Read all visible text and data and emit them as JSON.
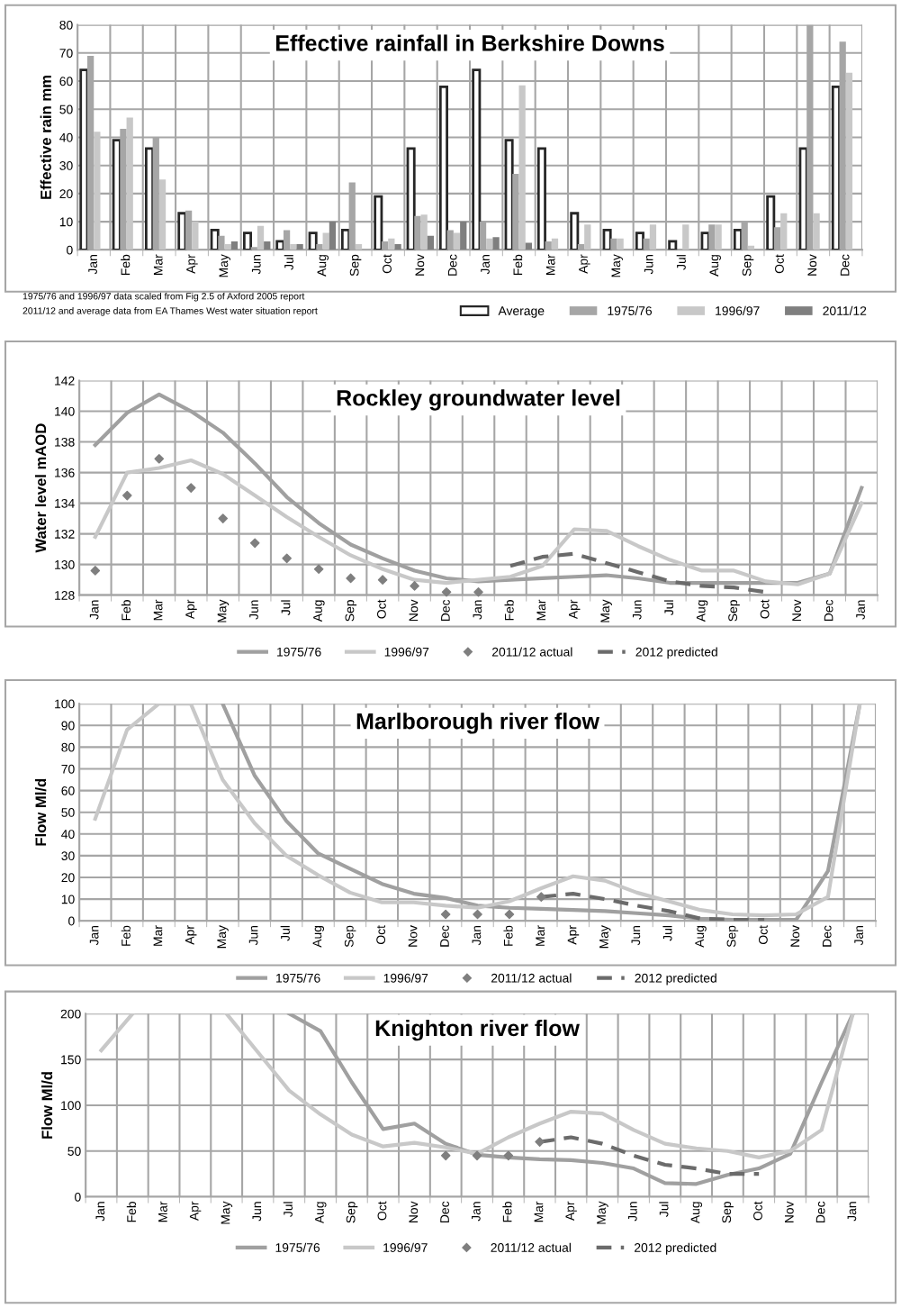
{
  "chart_data": [
    {
      "type": "bar",
      "title": "Effective rainfall in Berkshire Downs",
      "ylabel": "Effective rain mm",
      "categories": [
        "Jan",
        "Feb",
        "Mar",
        "Apr",
        "May",
        "Jun",
        "Jul",
        "Aug",
        "Sep",
        "Oct",
        "Nov",
        "Dec",
        "Jan",
        "Feb",
        "Mar",
        "Apr",
        "May",
        "Jun",
        "Jul",
        "Aug",
        "Sep",
        "Oct",
        "Nov",
        "Dec"
      ],
      "series": [
        {
          "name": "Average",
          "color": "#ffffff",
          "values": [
            64,
            39,
            36,
            13,
            7,
            6,
            3,
            6,
            7,
            19,
            36,
            58,
            64,
            39,
            36,
            13,
            7,
            6,
            3,
            6,
            7,
            19,
            36,
            58
          ]
        },
        {
          "name": "1975/76",
          "color": "#a6a6a6",
          "values": [
            69,
            43,
            40,
            14,
            5,
            1,
            7,
            2,
            24,
            3,
            12,
            7,
            10,
            27,
            3,
            2,
            4,
            4,
            null,
            9,
            10,
            8,
            80,
            74
          ]
        },
        {
          "name": "1996/97",
          "color": "#c8c8c8",
          "values": [
            42,
            47,
            25,
            10,
            2,
            8.5,
            2,
            6,
            2,
            4,
            12.5,
            6,
            4,
            58.5,
            4,
            9,
            4,
            9,
            9,
            9,
            1.5,
            13,
            13,
            63
          ]
        },
        {
          "name": "2011/12",
          "color": "#7f7f7f",
          "values": [
            null,
            null,
            null,
            null,
            3,
            3,
            2,
            10,
            null,
            2,
            5,
            10,
            4.5,
            2.5,
            null,
            null,
            null,
            null,
            null,
            null,
            null,
            null,
            null,
            null
          ]
        }
      ],
      "ylim": [
        0,
        80
      ],
      "yticks": [
        0,
        10,
        20,
        30,
        40,
        50,
        60,
        70,
        80
      ],
      "grid": true,
      "legend": "bottom right",
      "annotations": [
        "1975/76 and 1996/97 data scaled from Fig 2.5 of Axford 2005 report",
        "2011/12 and average data from EA Thames West water situation report"
      ]
    },
    {
      "type": "line",
      "title": "Rockley groundwater level",
      "ylabel": "Water level mAOD",
      "categories": [
        "Jan",
        "Feb",
        "Mar",
        "Apr",
        "May",
        "Jun",
        "Jul",
        "Aug",
        "Sep",
        "Oct",
        "Nov",
        "Dec",
        "Jan",
        "Feb",
        "Mar",
        "Apr",
        "May",
        "Jun",
        "Jul",
        "Aug",
        "Sep",
        "Oct",
        "Nov",
        "Dec",
        "Jan"
      ],
      "series": [
        {
          "name": "1975/76",
          "color": "#a0a0a0",
          "values": [
            137.8,
            139.9,
            141.1,
            140.0,
            138.6,
            136.6,
            134.4,
            132.7,
            131.3,
            130.4,
            129.6,
            129.1,
            128.9,
            129.0,
            129.1,
            129.2,
            129.3,
            129.1,
            128.8,
            128.8,
            128.8,
            128.8,
            128.8,
            129.4,
            135.0
          ]
        },
        {
          "name": "1996/97",
          "color": "#c8c8c8",
          "values": [
            131.8,
            136.0,
            136.3,
            136.8,
            135.9,
            134.5,
            133.1,
            131.8,
            130.6,
            129.7,
            129.0,
            128.8,
            129.0,
            129.2,
            129.9,
            132.3,
            132.2,
            131.2,
            130.3,
            129.6,
            129.6,
            128.9,
            128.7,
            129.4,
            134.0
          ]
        },
        {
          "name": "2011/12 actual",
          "type": "scatter",
          "marker": "diamond",
          "color": "#7f7f7f",
          "values": [
            129.6,
            134.5,
            136.9,
            135.0,
            133.0,
            131.4,
            130.4,
            129.7,
            129.1,
            129.0,
            128.6,
            128.2,
            128.2,
            null,
            null,
            null,
            null,
            null,
            null,
            null,
            null,
            null,
            null,
            null,
            null
          ]
        },
        {
          "name": "2012 predicted",
          "color": "#6b6b6b",
          "line_style": "dashed",
          "values": [
            null,
            null,
            null,
            null,
            null,
            null,
            null,
            null,
            null,
            null,
            null,
            null,
            null,
            129.9,
            130.5,
            130.7,
            130.1,
            129.5,
            128.9,
            128.6,
            128.5,
            128.2,
            null,
            null,
            null
          ]
        }
      ],
      "ylim": [
        128,
        142
      ],
      "yticks": [
        128,
        130,
        132,
        134,
        136,
        138,
        140,
        142
      ],
      "grid": true,
      "legend": "bottom"
    },
    {
      "type": "line",
      "title": "Marlborough river flow",
      "ylabel": "Flow Ml/d",
      "categories": [
        "Jan",
        "Feb",
        "Mar",
        "Apr",
        "May",
        "Jun",
        "Jul",
        "Aug",
        "Sep",
        "Oct",
        "Nov",
        "Dec",
        "Jan",
        "Feb",
        "Mar",
        "Apr",
        "May",
        "Jun",
        "Jul",
        "Aug",
        "Sep",
        "Oct",
        "Nov",
        "Dec",
        "Jan"
      ],
      "series": [
        {
          "name": "1975/76",
          "color": "#a0a0a0",
          "values": [
            null,
            null,
            null,
            null,
            100,
            67,
            46,
            31,
            24,
            17,
            12.5,
            10.5,
            7,
            6,
            5.5,
            5,
            4.5,
            3.5,
            2.5,
            1,
            0.5,
            0.5,
            0.5,
            23,
            100
          ]
        },
        {
          "name": "1996/97",
          "color": "#c8c8c8",
          "values": [
            47,
            88,
            100,
            100,
            65,
            45,
            30,
            21,
            13,
            8.5,
            8.5,
            7,
            6,
            9,
            15,
            20.5,
            18.5,
            13,
            9,
            5,
            3,
            2.5,
            3,
            11,
            100
          ]
        },
        {
          "name": "2011/12 actual",
          "type": "scatter",
          "marker": "diamond",
          "color": "#7f7f7f",
          "values": [
            null,
            null,
            null,
            null,
            null,
            null,
            null,
            null,
            null,
            null,
            null,
            3,
            3,
            3,
            11,
            null,
            null,
            null,
            null,
            null,
            null,
            null,
            null,
            null,
            null
          ]
        },
        {
          "name": "2012 predicted",
          "color": "#6b6b6b",
          "line_style": "dashed",
          "values": [
            null,
            null,
            null,
            null,
            null,
            null,
            null,
            null,
            null,
            null,
            null,
            null,
            null,
            null,
            11,
            12.5,
            10,
            7,
            4.5,
            1,
            0.5,
            0.5,
            null,
            null,
            null
          ]
        }
      ],
      "ylim": [
        0,
        100
      ],
      "yticks": [
        0,
        10,
        20,
        30,
        40,
        50,
        60,
        70,
        80,
        90,
        100
      ],
      "grid": true,
      "legend": "bottom"
    },
    {
      "type": "line",
      "title": "Knighton river flow",
      "ylabel": "Flow Ml/d",
      "categories": [
        "Jan",
        "Feb",
        "Mar",
        "Apr",
        "May",
        "Jun",
        "Jul",
        "Aug",
        "Sep",
        "Oct",
        "Nov",
        "Dec",
        "Jan",
        "Feb",
        "Mar",
        "Apr",
        "May",
        "Jun",
        "Jul",
        "Aug",
        "Sep",
        "Oct",
        "Nov",
        "Dec",
        "Jan"
      ],
      "series": [
        {
          "name": "1975/76",
          "color": "#a0a0a0",
          "values": [
            null,
            null,
            null,
            null,
            null,
            null,
            200,
            181,
            125,
            74,
            80,
            58,
            46,
            43,
            41,
            40,
            37,
            31,
            15,
            14,
            24,
            31,
            47,
            125,
            200
          ]
        },
        {
          "name": "1996/97",
          "color": "#c8c8c8",
          "values": [
            160,
            200,
            null,
            null,
            200,
            158,
            116,
            90,
            68,
            55,
            59,
            54,
            47,
            65,
            80,
            93,
            91,
            73,
            58,
            53,
            50,
            43,
            50,
            73,
            200
          ]
        },
        {
          "name": "2011/12 actual",
          "type": "scatter",
          "marker": "diamond",
          "color": "#7f7f7f",
          "values": [
            null,
            null,
            null,
            null,
            null,
            null,
            null,
            null,
            null,
            null,
            null,
            45,
            45,
            45,
            60,
            null,
            null,
            null,
            null,
            null,
            null,
            null,
            null,
            null,
            null
          ]
        },
        {
          "name": "2012 predicted",
          "color": "#6b6b6b",
          "line_style": "dashed",
          "values": [
            null,
            null,
            null,
            null,
            null,
            null,
            null,
            null,
            null,
            null,
            null,
            null,
            null,
            null,
            60,
            65,
            58,
            45,
            35,
            31,
            25,
            25,
            null,
            null,
            null
          ]
        }
      ],
      "ylim": [
        0,
        200
      ],
      "yticks": [
        0,
        50,
        100,
        150,
        200
      ],
      "grid": true,
      "legend": "bottom"
    }
  ]
}
